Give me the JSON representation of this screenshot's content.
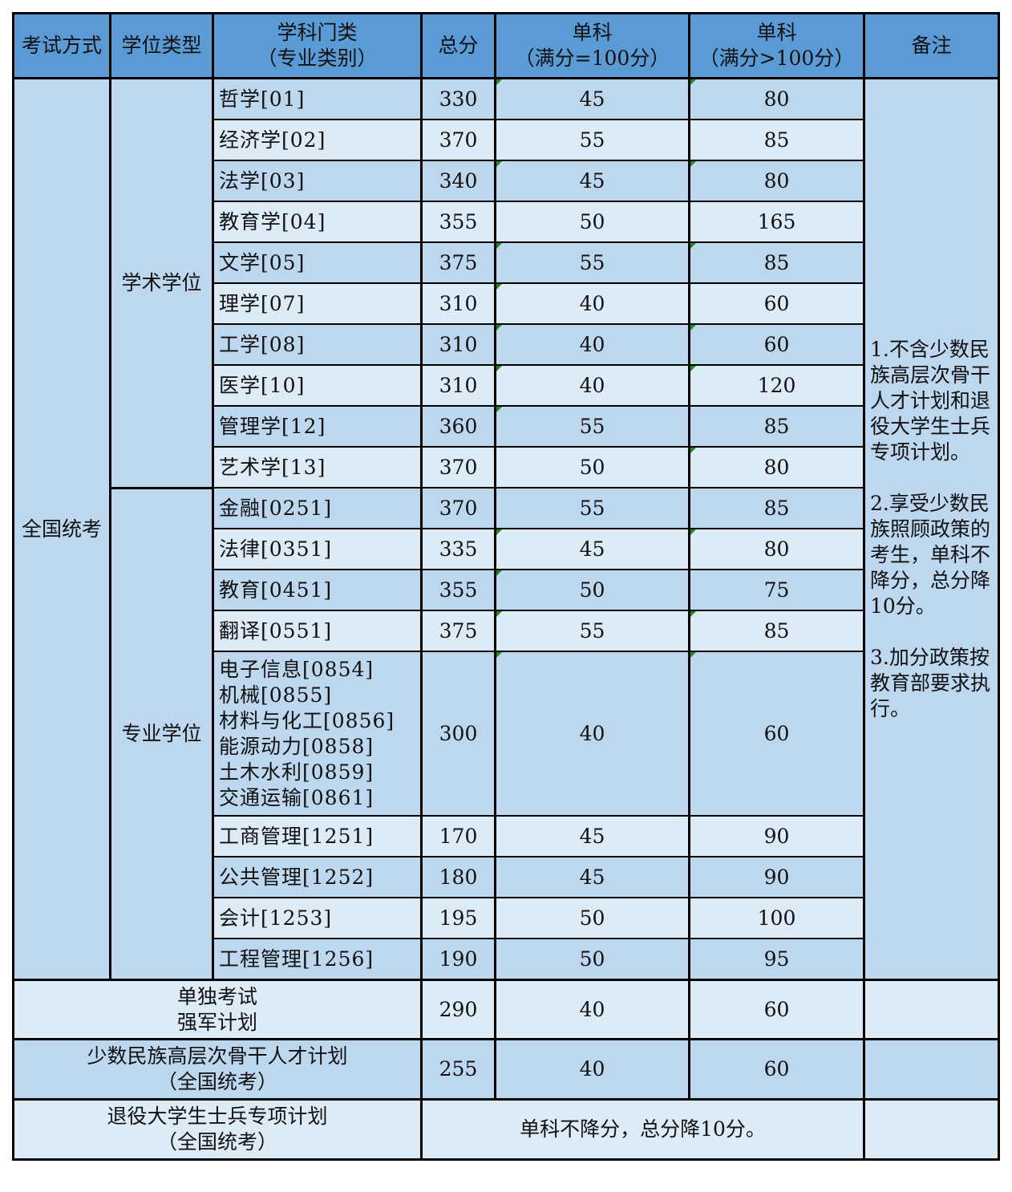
{
  "headers": {
    "exam_method": "考试方式",
    "degree_type": "学位类型",
    "subject_line1": "学科门类",
    "subject_line2": "（专业类别）",
    "total": "总分",
    "single100_line1": "单科",
    "single100_line2": "（满分=100分）",
    "single_gt100_line1": "单科",
    "single_gt100_line2": "（满分>100分）",
    "notes": "备注"
  },
  "exam_method": "全国统考",
  "groups": {
    "academic": "学术学位",
    "professional": "专业学位"
  },
  "rows": [
    {
      "subject": [
        "哲学[01]"
      ],
      "total": "330",
      "s100": "45",
      "sgt100": "80"
    },
    {
      "subject": [
        "经济学[02]"
      ],
      "total": "370",
      "s100": "55",
      "sgt100": "85"
    },
    {
      "subject": [
        "法学[03]"
      ],
      "total": "340",
      "s100": "45",
      "sgt100": "80"
    },
    {
      "subject": [
        "教育学[04]"
      ],
      "total": "355",
      "s100": "50",
      "sgt100": "165"
    },
    {
      "subject": [
        "文学[05]"
      ],
      "total": "375",
      "s100": "55",
      "sgt100": "85"
    },
    {
      "subject": [
        "理学[07]"
      ],
      "total": "310",
      "s100": "40",
      "sgt100": "60"
    },
    {
      "subject": [
        "工学[08]"
      ],
      "total": "310",
      "s100": "40",
      "sgt100": "60"
    },
    {
      "subject": [
        "医学[10]"
      ],
      "total": "310",
      "s100": "40",
      "sgt100": "120"
    },
    {
      "subject": [
        "管理学[12]"
      ],
      "total": "360",
      "s100": "55",
      "sgt100": "85"
    },
    {
      "subject": [
        "艺术学[13]"
      ],
      "total": "370",
      "s100": "50",
      "sgt100": "80"
    },
    {
      "subject": [
        "金融[0251]"
      ],
      "total": "370",
      "s100": "55",
      "sgt100": "85"
    },
    {
      "subject": [
        "法律[0351]"
      ],
      "total": "335",
      "s100": "45",
      "sgt100": "80"
    },
    {
      "subject": [
        "教育[0451]"
      ],
      "total": "355",
      "s100": "50",
      "sgt100": "75"
    },
    {
      "subject": [
        "翻译[0551]"
      ],
      "total": "375",
      "s100": "55",
      "sgt100": "85"
    },
    {
      "subject": [
        "电子信息[0854]",
        "机械[0855]",
        "材料与化工[0856]",
        "能源动力[0858]",
        "土木水利[0859]",
        "交通运输[0861]"
      ],
      "total": "300",
      "s100": "40",
      "sgt100": "60"
    },
    {
      "subject": [
        "工商管理[1251]"
      ],
      "total": "170",
      "s100": "45",
      "sgt100": "90"
    },
    {
      "subject": [
        "公共管理[1252]"
      ],
      "total": "180",
      "s100": "45",
      "sgt100": "90"
    },
    {
      "subject": [
        "会计[1253]"
      ],
      "total": "195",
      "s100": "50",
      "sgt100": "100"
    },
    {
      "subject": [
        "工程管理[1256]"
      ],
      "total": "190",
      "s100": "50",
      "sgt100": "95"
    }
  ],
  "notes": [
    "1.不含少数民族高层次骨干人才计划和退役大学生士兵专项计划。",
    "2.享受少数民族照顾政策的考生，单科不降分，总分降10分。",
    "3.加分政策按教育部要求执行。"
  ],
  "special_rows": [
    {
      "label": [
        "单独考试",
        "强军计划"
      ],
      "total": "290",
      "s100": "40",
      "sgt100": "60"
    },
    {
      "label": [
        "少数民族高层次骨干人才计划",
        "（全国统考）"
      ],
      "total": "255",
      "s100": "40",
      "sgt100": "60"
    },
    {
      "label": [
        "退役大学生士兵专项计划",
        "（全国统考）"
      ],
      "merged": "单科不降分，总分降10分。"
    }
  ],
  "colors": {
    "header": "#5b9bd5",
    "row_dark": "#bdd7ee",
    "row_light": "#ddebf7",
    "border": "#000000"
  }
}
